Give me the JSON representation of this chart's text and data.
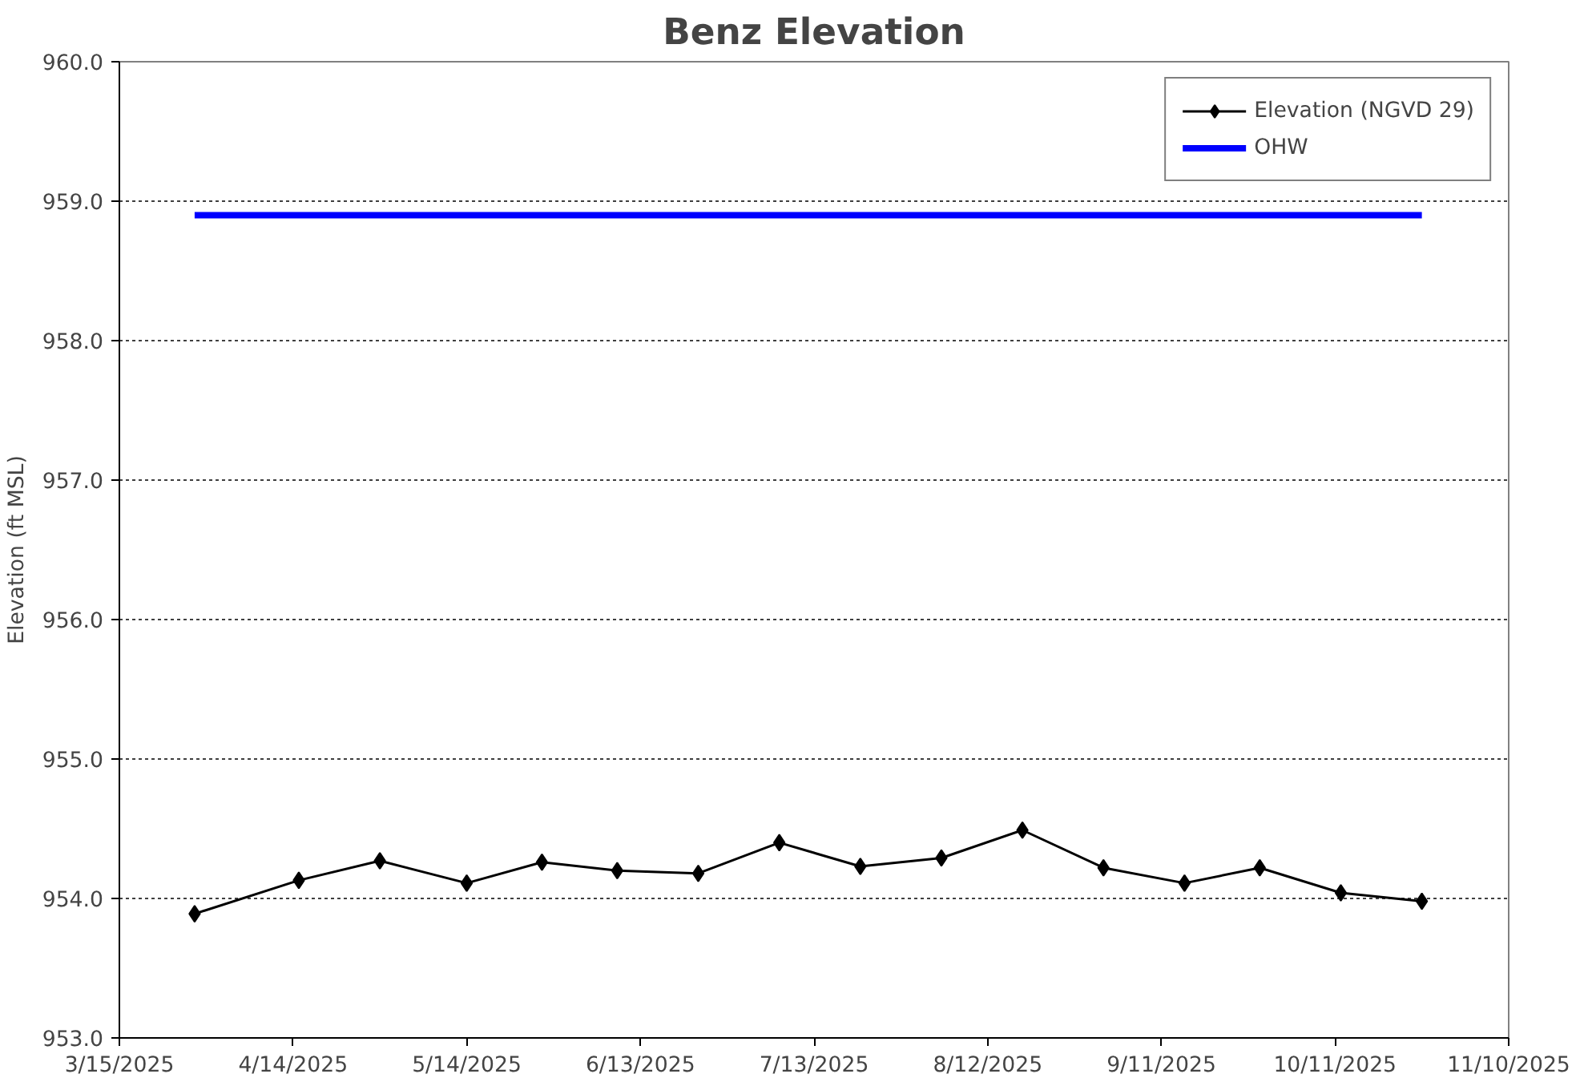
{
  "chart_data": {
    "type": "line",
    "title": "Benz Elevation",
    "ylabel": "Elevation (ft MSL)",
    "x": [
      "2025-03-28",
      "2025-04-15",
      "2025-04-29",
      "2025-05-14",
      "2025-05-27",
      "2025-06-09",
      "2025-06-23",
      "2025-07-07",
      "2025-07-21",
      "2025-08-04",
      "2025-08-18",
      "2025-09-01",
      "2025-09-15",
      "2025-09-28",
      "2025-10-12",
      "2025-10-26"
    ],
    "series": [
      {
        "name": "Elevation (NGVD 29)",
        "color": "#000000",
        "marker": "diamond",
        "values": [
          953.89,
          954.13,
          954.27,
          954.11,
          954.26,
          954.2,
          954.18,
          954.4,
          954.23,
          954.29,
          954.49,
          954.22,
          954.11,
          954.22,
          954.04,
          953.98
        ]
      },
      {
        "name": "OHW",
        "color": "#0000ff",
        "marker": "none",
        "x": [
          "2025-03-28",
          "2025-10-26"
        ],
        "values": [
          958.9,
          958.9
        ]
      }
    ],
    "xlim": [
      "2025-03-15",
      "2025-11-10"
    ],
    "xticks": [
      {
        "value": "2025-03-15",
        "label": "3/15/2025"
      },
      {
        "value": "2025-04-14",
        "label": "4/14/2025"
      },
      {
        "value": "2025-05-14",
        "label": "5/14/2025"
      },
      {
        "value": "2025-06-13",
        "label": "6/13/2025"
      },
      {
        "value": "2025-07-13",
        "label": "7/13/2025"
      },
      {
        "value": "2025-08-12",
        "label": "8/12/2025"
      },
      {
        "value": "2025-09-11",
        "label": "9/11/2025"
      },
      {
        "value": "2025-10-11",
        "label": "10/11/2025"
      },
      {
        "value": "2025-11-10",
        "label": "11/10/2025"
      }
    ],
    "ylim": [
      953,
      960
    ],
    "yticks": [
      {
        "value": 953,
        "label": "953.0"
      },
      {
        "value": 954,
        "label": "954.0"
      },
      {
        "value": 955,
        "label": "955.0"
      },
      {
        "value": 956,
        "label": "956.0"
      },
      {
        "value": 957,
        "label": "957.0"
      },
      {
        "value": 958,
        "label": "958.0"
      },
      {
        "value": 959,
        "label": "959.0"
      },
      {
        "value": 960,
        "label": "960.0"
      }
    ],
    "grid": "y",
    "legend": "top right"
  }
}
